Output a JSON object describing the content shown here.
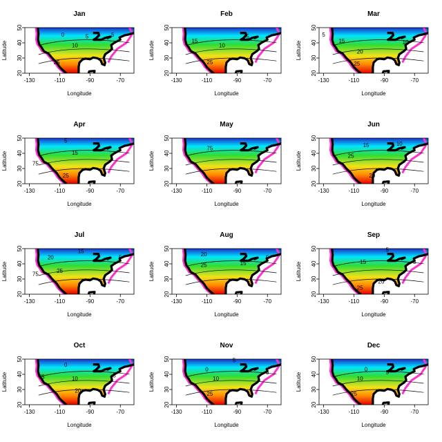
{
  "chart_data": {
    "type": "heatmap",
    "xlabel": "Longitude",
    "ylabel": "Latitude",
    "xlim": [
      -133,
      -61
    ],
    "ylim": [
      20,
      50
    ],
    "xticks": [
      -130,
      -110,
      -90,
      -70
    ],
    "yticks": [
      20,
      30,
      40,
      50
    ],
    "grid": false,
    "legend": "none",
    "colors": {
      "cold": "#1a33cc",
      "cool": "#00e6ff",
      "mid": "#33dd33",
      "warm": "#f2e11a",
      "hot": "#ff8c00",
      "hottest": "#e60000",
      "edge": "#ff33cc",
      "coast": "#000000"
    },
    "panels": [
      {
        "month": "Jan",
        "labels": [
          {
            "text": "0",
            "lon": -108,
            "lat": 44
          },
          {
            "text": "10",
            "lon": -100,
            "lat": 37
          },
          {
            "text": "5",
            "lon": -92,
            "lat": 43
          },
          {
            "text": "25",
            "lon": -112,
            "lat": 26
          },
          {
            "text": "5",
            "lon": -75,
            "lat": 44
          }
        ]
      },
      {
        "month": "Feb",
        "labels": [
          {
            "text": "15",
            "lon": -118,
            "lat": 40
          },
          {
            "text": "10",
            "lon": -100,
            "lat": 37
          },
          {
            "text": "5",
            "lon": -83,
            "lat": 43
          },
          {
            "text": "25",
            "lon": -108,
            "lat": 26
          }
        ]
      },
      {
        "month": "Mar",
        "labels": [
          {
            "text": "5",
            "lon": -130,
            "lat": 44
          },
          {
            "text": "15",
            "lon": -118,
            "lat": 40
          },
          {
            "text": "10",
            "lon": -76,
            "lat": 39
          },
          {
            "text": "20",
            "lon": -106,
            "lat": 33
          },
          {
            "text": "25",
            "lon": -108,
            "lat": 25
          }
        ]
      },
      {
        "month": "Apr",
        "labels": [
          {
            "text": "5",
            "lon": -106,
            "lat": 47
          },
          {
            "text": "15",
            "lon": -100,
            "lat": 39
          },
          {
            "text": "75",
            "lon": -126,
            "lat": 32
          },
          {
            "text": "25",
            "lon": -106,
            "lat": 24
          }
        ]
      },
      {
        "month": "May",
        "labels": [
          {
            "text": "75",
            "lon": -108,
            "lat": 42
          }
        ]
      },
      {
        "month": "Jun",
        "labels": [
          {
            "text": "15",
            "lon": -102,
            "lat": 44
          },
          {
            "text": "25",
            "lon": -112,
            "lat": 37
          },
          {
            "text": "10",
            "lon": -80,
            "lat": 45
          },
          {
            "text": "20",
            "lon": -98,
            "lat": 24
          }
        ]
      },
      {
        "month": "Jul",
        "labels": [
          {
            "text": "20",
            "lon": -116,
            "lat": 43
          },
          {
            "text": "15",
            "lon": -96,
            "lat": 47
          },
          {
            "text": "25",
            "lon": -110,
            "lat": 34
          },
          {
            "text": "75",
            "lon": -126,
            "lat": 32
          },
          {
            "text": "5",
            "lon": -70,
            "lat": 43
          }
        ]
      },
      {
        "month": "Aug",
        "labels": [
          {
            "text": "20",
            "lon": -112,
            "lat": 45
          },
          {
            "text": "25",
            "lon": -112,
            "lat": 38
          },
          {
            "text": "15",
            "lon": -86,
            "lat": 39
          },
          {
            "text": "5",
            "lon": -70,
            "lat": 43
          }
        ]
      },
      {
        "month": "Sep",
        "labels": [
          {
            "text": "5",
            "lon": -88,
            "lat": 48
          },
          {
            "text": "15",
            "lon": -104,
            "lat": 40
          },
          {
            "text": "5",
            "lon": -70,
            "lat": 40
          },
          {
            "text": "20",
            "lon": -92,
            "lat": 27
          },
          {
            "text": "25",
            "lon": -106,
            "lat": 23
          }
        ]
      },
      {
        "month": "Oct",
        "labels": [
          {
            "text": "0",
            "lon": -106,
            "lat": 45
          },
          {
            "text": "75",
            "lon": -122,
            "lat": 37
          },
          {
            "text": "10",
            "lon": -100,
            "lat": 36
          },
          {
            "text": "20",
            "lon": -98,
            "lat": 28
          },
          {
            "text": "5",
            "lon": -74,
            "lat": 38
          }
        ]
      },
      {
        "month": "Nov",
        "labels": [
          {
            "text": "5",
            "lon": -92,
            "lat": 48
          },
          {
            "text": "0",
            "lon": -110,
            "lat": 42
          },
          {
            "text": "10",
            "lon": -104,
            "lat": 36
          },
          {
            "text": "25",
            "lon": -108,
            "lat": 26
          },
          {
            "text": "5",
            "lon": -70,
            "lat": 40
          }
        ]
      },
      {
        "month": "Dec",
        "labels": [
          {
            "text": "0",
            "lon": -102,
            "lat": 42
          },
          {
            "text": "5",
            "lon": -88,
            "lat": 40
          },
          {
            "text": "10",
            "lon": -106,
            "lat": 36
          },
          {
            "text": "25",
            "lon": -110,
            "lat": 26
          }
        ]
      }
    ]
  }
}
